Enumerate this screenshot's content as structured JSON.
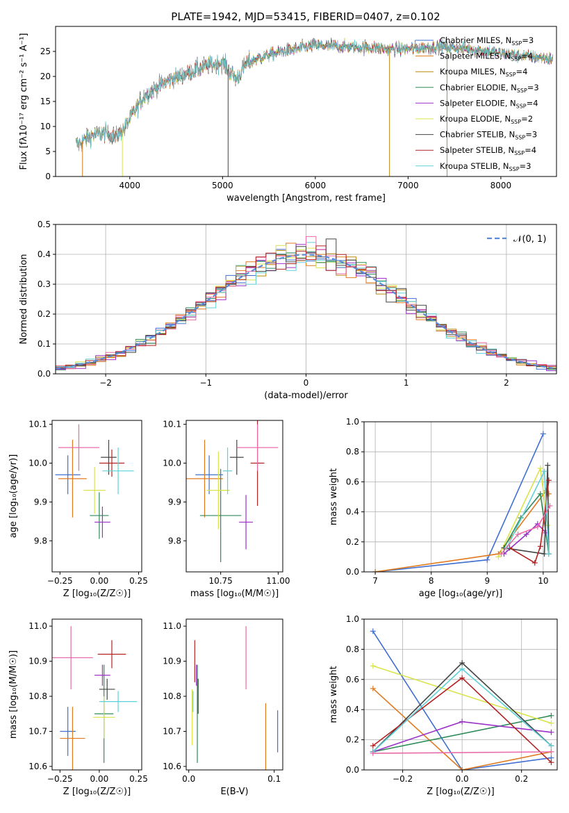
{
  "figure_title": "PLATE=1942, MJD=53415, FIBERID=0407, z=0.102",
  "model_colors": [
    "#3f6fd0",
    "#e07a1f",
    "#b8860b",
    "#2e8b57",
    "#9b30c8",
    "#d8e44a",
    "#444444",
    "#b22222",
    "#5fd0d8",
    "#e86aa8"
  ],
  "chart_data": [
    {
      "id": "spectrum",
      "type": "line",
      "title": "",
      "xlabel": "wavelength [Angstrom, rest frame]",
      "ylabel": "Flux [fλ10⁻¹⁷ erg cm⁻² s⁻¹ A⁻¹]",
      "xlim": [
        3200,
        8600
      ],
      "ylim": [
        0,
        30
      ],
      "xticks": [
        4000,
        5000,
        6000,
        7000,
        8000
      ],
      "yticks": [
        0,
        5,
        10,
        15,
        20,
        25
      ],
      "grid": false,
      "legend_position": "right",
      "continuum_x": [
        3450,
        3550,
        3650,
        3750,
        3850,
        3950,
        4050,
        4150,
        4300,
        4450,
        4600,
        4800,
        5000,
        5150,
        5250,
        5400,
        5600,
        5800,
        6000,
        6200,
        6400,
        6600,
        6800,
        7000,
        7200,
        7400,
        7600,
        7800,
        8000,
        8200,
        8400,
        8550
      ],
      "continuum_y": [
        6.5,
        7.8,
        8.5,
        8.7,
        8.0,
        9.8,
        13.0,
        16.0,
        18.0,
        19.5,
        20.5,
        22.0,
        22.8,
        19.5,
        22.5,
        23.8,
        24.8,
        25.5,
        26.2,
        26.0,
        25.8,
        25.8,
        25.5,
        25.5,
        25.8,
        26.0,
        25.6,
        25.2,
        24.6,
        24.2,
        23.8,
        23.5
      ],
      "series": [
        {
          "name": "Chabrier MILES, N_SSP=3",
          "label_main": "Chabrier MILES, N",
          "label_sub": "SSP",
          "label_end": "=3"
        },
        {
          "name": "Salpeter MILES, N_SSP=4",
          "label_main": "Salpeter MILES, N",
          "label_sub": "SSP",
          "label_end": "=4"
        },
        {
          "name": "Kroupa MILES, N_SSP=4",
          "label_main": "Kroupa MILES, N",
          "label_sub": "SSP",
          "label_end": "=4"
        },
        {
          "name": "Chabrier ELODIE, N_SSP=3",
          "label_main": "Chabrier ELODIE, N",
          "label_sub": "SSP",
          "label_end": "=3"
        },
        {
          "name": "Salpeter ELODIE, N_SSP=4",
          "label_main": "Salpeter ELODIE, N",
          "label_sub": "SSP",
          "label_end": "=4"
        },
        {
          "name": "Kroupa ELODIE, N_SSP=2",
          "label_main": "Kroupa ELODIE, N",
          "label_sub": "SSP",
          "label_end": "=2"
        },
        {
          "name": "Chabrier STELIB, N_SSP=3",
          "label_main": "Chabrier STELIB, N",
          "label_sub": "SSP",
          "label_end": "=3"
        },
        {
          "name": "Salpeter STELIB, N_SSP=4",
          "label_main": "Salpeter STELIB, N",
          "label_sub": "SSP",
          "label_end": "=4"
        },
        {
          "name": "Kroupa STELIB, N_SSP=3",
          "label_main": "Kroupa STELIB, N",
          "label_sub": "SSP",
          "label_end": "=3"
        }
      ]
    },
    {
      "id": "residuals",
      "type": "line",
      "title": "",
      "xlabel": "(data-model)/error",
      "ylabel": "Normed distribution",
      "xlim": [
        -2.5,
        2.5
      ],
      "ylim": [
        0,
        0.5
      ],
      "xticks": [
        -2,
        -1,
        0,
        1,
        2
      ],
      "yticks": [
        0.0,
        0.1,
        0.2,
        0.3,
        0.4,
        0.5
      ],
      "grid": true,
      "legend_position": "top-right",
      "bin_width": 0.1,
      "histogram_x_start": -2.5,
      "histogram_x_end": 2.5,
      "reference_curve": {
        "name": "𝒩(0, 1)",
        "mean": 0,
        "sigma": 1
      }
    },
    {
      "id": "age-vs-Z",
      "type": "scatter",
      "xlabel": "Z [log₁₀(Z/Z☉)]",
      "ylabel": "age [log₁₀(age/yr)]",
      "xlim": [
        -0.3,
        0.27
      ],
      "ylim": [
        9.72,
        10.11
      ],
      "xticks": [
        -0.25,
        0.0,
        0.25
      ],
      "yticks": [
        9.8,
        9.9,
        10.0,
        10.1
      ],
      "points": [
        {
          "x": -0.2,
          "xerr": 0.08,
          "y": 9.97,
          "yerr": 0.05,
          "color": 0
        },
        {
          "x": -0.17,
          "xerr": 0.09,
          "y": 9.96,
          "yerr": 0.1,
          "color": 1
        },
        {
          "x": 0.0,
          "xerr": 0.06,
          "y": 9.865,
          "yerr": 0.06,
          "color": 3
        },
        {
          "x": 0.02,
          "xerr": 0.05,
          "y": 9.848,
          "yerr": 0.04,
          "color": 4
        },
        {
          "x": -0.03,
          "xerr": 0.07,
          "y": 9.93,
          "yerr": 0.06,
          "color": 5
        },
        {
          "x": 0.06,
          "xerr": 0.05,
          "y": 10.015,
          "yerr": 0.045,
          "color": 6
        },
        {
          "x": 0.08,
          "xerr": 0.08,
          "y": 10.0,
          "yerr": 0.035,
          "color": 7
        },
        {
          "x": 0.12,
          "xerr": 0.1,
          "y": 9.98,
          "yerr": 0.06,
          "color": 8
        },
        {
          "x": -0.13,
          "xerr": 0.13,
          "y": 10.04,
          "yerr": 0.06,
          "color": 9
        }
      ]
    },
    {
      "id": "age-vs-mass",
      "type": "scatter",
      "xlabel": "mass [log₁₀(M/M☉)]",
      "ylabel": "",
      "xlim": [
        10.6,
        11.02
      ],
      "ylim": [
        9.72,
        10.11
      ],
      "xticks": [
        10.75,
        11.0
      ],
      "yticks": [
        9.8,
        9.9,
        10.0,
        10.1
      ],
      "points": [
        {
          "x": 10.7,
          "xerr": 0.06,
          "y": 9.97,
          "yerr": 0.05,
          "color": 0
        },
        {
          "x": 10.68,
          "xerr": 0.08,
          "y": 9.96,
          "yerr": 0.1,
          "color": 1
        },
        {
          "x": 10.75,
          "xerr": 0.09,
          "y": 9.865,
          "yerr": 0.12,
          "color": 3
        },
        {
          "x": 10.86,
          "xerr": 0.03,
          "y": 9.848,
          "yerr": 0.07,
          "color": 4
        },
        {
          "x": 10.74,
          "xerr": 0.05,
          "y": 9.93,
          "yerr": 0.1,
          "color": 5
        },
        {
          "x": 10.82,
          "xerr": 0.03,
          "y": 10.015,
          "yerr": 0.045,
          "color": 6
        },
        {
          "x": 10.91,
          "xerr": 0.03,
          "y": 10.0,
          "yerr": 0.11,
          "color": 7
        },
        {
          "x": 10.78,
          "xerr": 0.02,
          "y": 9.98,
          "yerr": 0.06,
          "color": 8
        },
        {
          "x": 10.91,
          "xerr": 0.09,
          "y": 10.04,
          "yerr": 0.06,
          "color": 9
        }
      ]
    },
    {
      "id": "massweight-vs-age",
      "type": "line",
      "xlabel": "age [log₁₀(age/yr)]",
      "ylabel": "mass weight",
      "xlim": [
        6.8,
        10.25
      ],
      "ylim": [
        0,
        1.0
      ],
      "xticks": [
        7,
        8,
        9,
        10
      ],
      "yticks": [
        0.0,
        0.2,
        0.4,
        0.6,
        0.8,
        1.0
      ],
      "grid": true,
      "series": [
        {
          "color": 0,
          "x": [
            7.0,
            9.0,
            10.0
          ],
          "y": [
            0.0,
            0.08,
            0.92
          ]
        },
        {
          "color": 1,
          "x": [
            7.0,
            9.2,
            10.05,
            10.1
          ],
          "y": [
            0.0,
            0.12,
            0.54,
            0.52
          ]
        },
        {
          "color": 3,
          "x": [
            9.3,
            9.6,
            9.95,
            10.1
          ],
          "y": [
            0.16,
            0.36,
            0.52,
            0.12
          ]
        },
        {
          "color": 4,
          "x": [
            9.3,
            9.7,
            9.9,
            10.05
          ],
          "y": [
            0.12,
            0.25,
            0.32,
            0.26
          ]
        },
        {
          "color": 5,
          "x": [
            9.2,
            9.95,
            10.08
          ],
          "y": [
            0.1,
            0.69,
            0.31
          ]
        },
        {
          "color": 6,
          "x": [
            9.3,
            10.02,
            10.08,
            10.1
          ],
          "y": [
            0.16,
            0.12,
            0.71,
            0.12
          ]
        },
        {
          "color": 7,
          "x": [
            9.4,
            9.85,
            9.95,
            10.1
          ],
          "y": [
            0.16,
            0.06,
            0.17,
            0.61
          ]
        },
        {
          "color": 8,
          "x": [
            9.35,
            10.02,
            10.1
          ],
          "y": [
            0.16,
            0.67,
            0.12
          ]
        },
        {
          "color": 9,
          "x": [
            9.25,
            9.55,
            9.9,
            10.12
          ],
          "y": [
            0.12,
            0.25,
            0.3,
            0.44
          ]
        }
      ]
    },
    {
      "id": "mass-vs-Z",
      "type": "scatter",
      "xlabel": "Z [log₁₀(Z/Z☉)]",
      "ylabel": "mass [log₁₀(M/M☉)]",
      "xlim": [
        -0.3,
        0.27
      ],
      "ylim": [
        10.59,
        11.02
      ],
      "xticks": [
        -0.25,
        0.0,
        0.25
      ],
      "yticks": [
        10.6,
        10.7,
        10.8,
        10.9,
        11.0
      ],
      "points": [
        {
          "x": -0.2,
          "xerr": 0.05,
          "y": 10.7,
          "yerr": 0.07,
          "color": 0
        },
        {
          "x": -0.17,
          "xerr": 0.08,
          "y": 10.68,
          "yerr": 0.09,
          "color": 1
        },
        {
          "x": 0.03,
          "xerr": 0.06,
          "y": 10.75,
          "yerr": 0.14,
          "color": 3
        },
        {
          "x": 0.02,
          "xerr": 0.05,
          "y": 10.86,
          "yerr": 0.03,
          "color": 4
        },
        {
          "x": 0.03,
          "xerr": 0.07,
          "y": 10.74,
          "yerr": 0.06,
          "color": 5
        },
        {
          "x": 0.05,
          "xerr": 0.05,
          "y": 10.82,
          "yerr": 0.03,
          "color": 6
        },
        {
          "x": 0.08,
          "xerr": 0.09,
          "y": 10.92,
          "yerr": 0.04,
          "color": 7
        },
        {
          "x": 0.12,
          "xerr": 0.12,
          "y": 10.785,
          "yerr": 0.03,
          "color": 8
        },
        {
          "x": -0.18,
          "xerr": 0.14,
          "y": 10.91,
          "yerr": 0.09,
          "color": 9
        }
      ]
    },
    {
      "id": "mass-vs-EBV",
      "type": "scatter",
      "xlabel": "E(B-V)",
      "ylabel": "",
      "xlim": [
        -0.003,
        0.11
      ],
      "ylim": [
        10.59,
        11.02
      ],
      "xticks": [
        0.0,
        0.1
      ],
      "yticks": [
        10.6,
        10.7,
        10.8,
        10.9,
        11.0
      ],
      "points": [
        {
          "x": 0.104,
          "xerr": 0,
          "y": 10.7,
          "yerr": 0.06,
          "color": 0
        },
        {
          "x": 0.09,
          "xerr": 0,
          "y": 10.68,
          "yerr": 0.1,
          "color": 1
        },
        {
          "x": 0.01,
          "xerr": 0,
          "y": 10.75,
          "yerr": 0.14,
          "color": 3
        },
        {
          "x": 0.009,
          "xerr": 0,
          "y": 10.86,
          "yerr": 0.03,
          "color": 4
        },
        {
          "x": 0.004,
          "xerr": 0,
          "y": 10.74,
          "yerr": 0.08,
          "color": 5
        },
        {
          "x": 0.011,
          "xerr": 0,
          "y": 10.8,
          "yerr": 0.05,
          "color": 6
        },
        {
          "x": 0.007,
          "xerr": 0,
          "y": 10.9,
          "yerr": 0.06,
          "color": 7
        },
        {
          "x": 0.005,
          "xerr": 0,
          "y": 10.785,
          "yerr": 0.03,
          "color": 8
        },
        {
          "x": 0.067,
          "xerr": 0,
          "y": 10.91,
          "yerr": 0.09,
          "color": 9
        }
      ]
    },
    {
      "id": "massweight-vs-Z",
      "type": "line",
      "xlabel": "Z [log₁₀(Z/Z☉)]",
      "ylabel": "mass weight",
      "xlim": [
        -0.33,
        0.32
      ],
      "ylim": [
        0,
        1.0
      ],
      "xticks": [
        -0.2,
        0.0,
        0.2
      ],
      "yticks": [
        0.0,
        0.2,
        0.4,
        0.6,
        0.8,
        1.0
      ],
      "grid": true,
      "series": [
        {
          "color": 0,
          "x": [
            -0.3,
            0.0,
            0.3
          ],
          "y": [
            0.92,
            0.0,
            0.08
          ]
        },
        {
          "color": 1,
          "x": [
            -0.3,
            0.0,
            0.3
          ],
          "y": [
            0.54,
            0.0,
            0.12
          ]
        },
        {
          "color": 3,
          "x": [
            -0.3,
            0.3
          ],
          "y": [
            0.12,
            0.36
          ]
        },
        {
          "color": 4,
          "x": [
            -0.3,
            0.0,
            0.3
          ],
          "y": [
            0.12,
            0.32,
            0.25
          ]
        },
        {
          "color": 5,
          "x": [
            -0.3,
            0.3
          ],
          "y": [
            0.69,
            0.31
          ]
        },
        {
          "color": 6,
          "x": [
            -0.3,
            0.0,
            0.3
          ],
          "y": [
            0.12,
            0.71,
            0.16
          ]
        },
        {
          "color": 7,
          "x": [
            -0.3,
            0.0,
            0.3
          ],
          "y": [
            0.16,
            0.61,
            0.05
          ]
        },
        {
          "color": 8,
          "x": [
            -0.3,
            0.0,
            0.3
          ],
          "y": [
            0.12,
            0.67,
            0.16
          ]
        },
        {
          "color": 9,
          "x": [
            -0.3,
            0.3
          ],
          "y": [
            0.11,
            0.12
          ]
        }
      ]
    }
  ]
}
